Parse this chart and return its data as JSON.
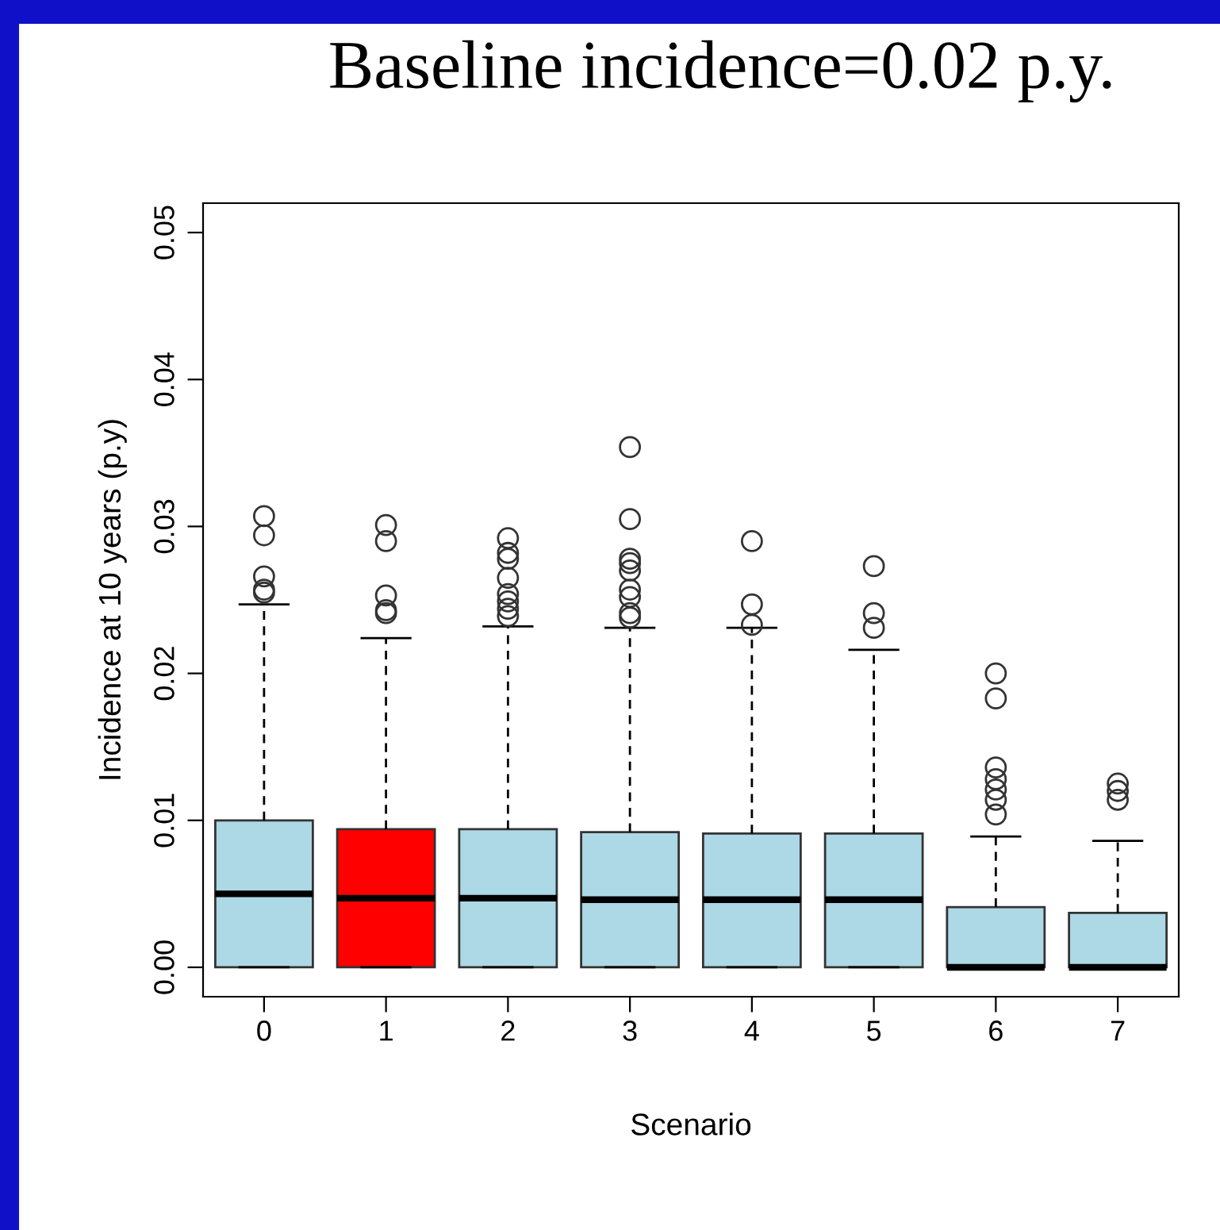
{
  "chart_data": {
    "type": "box",
    "title": "Baseline incidence=0.02 p.y.",
    "xlabel": "Scenario",
    "ylabel": "Incidence at 10 years (p.y)",
    "categories": [
      "0",
      "1",
      "2",
      "3",
      "4",
      "5",
      "6",
      "7"
    ],
    "colors": [
      "#add8e6",
      "#ff0000",
      "#add8e6",
      "#add8e6",
      "#add8e6",
      "#add8e6",
      "#add8e6",
      "#add8e6"
    ],
    "boxes": [
      {
        "low": 0,
        "q1": 0,
        "median": 0.005,
        "q3": 0.01,
        "high": 0.0247,
        "outliers": [
          0.0307,
          0.0294,
          0.0266,
          0.0257,
          0.0255
        ]
      },
      {
        "low": 0,
        "q1": 0,
        "median": 0.0047,
        "q3": 0.0094,
        "high": 0.0224,
        "outliers": [
          0.0301,
          0.029,
          0.0253,
          0.0243,
          0.0241
        ]
      },
      {
        "low": 0,
        "q1": 0,
        "median": 0.0047,
        "q3": 0.0094,
        "high": 0.0232,
        "outliers": [
          0.0292,
          0.0282,
          0.0278,
          0.0265,
          0.0254,
          0.0249,
          0.0244,
          0.0239
        ]
      },
      {
        "low": 0,
        "q1": 0,
        "median": 0.0046,
        "q3": 0.0092,
        "high": 0.0231,
        "outliers": [
          0.0354,
          0.0305,
          0.0278,
          0.0275,
          0.027,
          0.0257,
          0.0252,
          0.0241,
          0.0238
        ]
      },
      {
        "low": 0,
        "q1": 0,
        "median": 0.0046,
        "q3": 0.0091,
        "high": 0.0231,
        "outliers": [
          0.029,
          0.0247,
          0.0233
        ]
      },
      {
        "low": 0,
        "q1": 0,
        "median": 0.0046,
        "q3": 0.0091,
        "high": 0.0216,
        "outliers": [
          0.0273,
          0.0241,
          0.0231
        ]
      },
      {
        "low": 0,
        "q1": 0,
        "median": 0,
        "q3": 0.0041,
        "high": 0.0089,
        "outliers": [
          0.02,
          0.0183,
          0.0136,
          0.0128,
          0.0121,
          0.0114,
          0.0104
        ]
      },
      {
        "low": 0,
        "q1": 0,
        "median": 0,
        "q3": 0.0037,
        "high": 0.0086,
        "outliers": [
          0.0125,
          0.012,
          0.0114
        ]
      }
    ],
    "ylim": [
      -0.002,
      0.052
    ],
    "yticks": [
      {
        "value": 0,
        "label": "0.00"
      },
      {
        "value": 0.01,
        "label": "0.01"
      },
      {
        "value": 0.02,
        "label": "0.02"
      },
      {
        "value": 0.03,
        "label": "0.03"
      },
      {
        "value": 0.04,
        "label": "0.04"
      },
      {
        "value": 0.05,
        "label": "0.05"
      }
    ],
    "grid": false
  }
}
